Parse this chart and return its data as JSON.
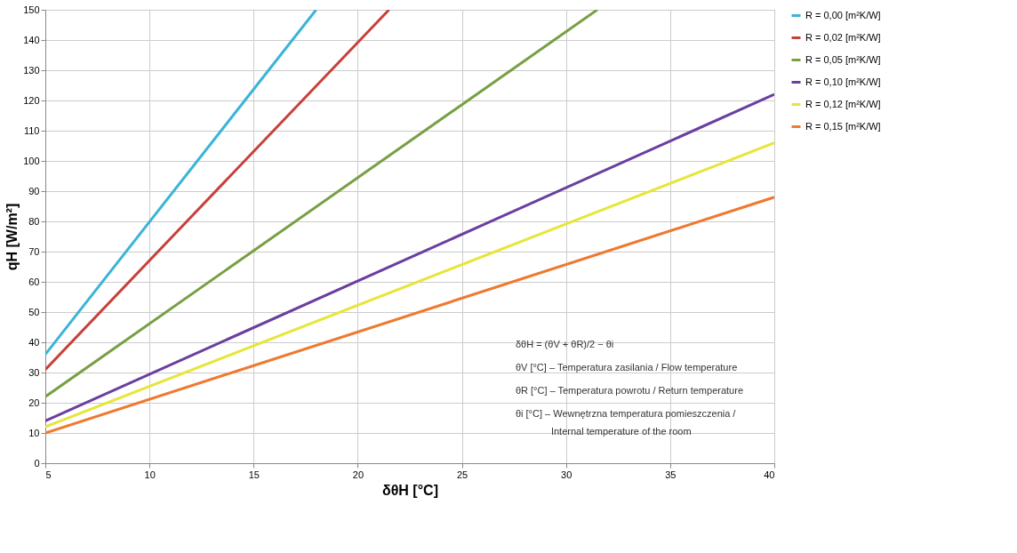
{
  "chart_data": {
    "type": "line",
    "xlabel": "δθH [°C]",
    "ylabel": "qH [W/m²]",
    "series": [
      {
        "name": "R = 0,00   [m²K/W]",
        "color": "#3bb4d8",
        "x": [
          5,
          18
        ],
        "values": [
          36,
          150
        ]
      },
      {
        "name": "R = 0,02   [m²K/W]",
        "color": "#c8403a",
        "x": [
          5,
          21.5
        ],
        "values": [
          31,
          150
        ]
      },
      {
        "name": "R = 0,05   [m²K/W]",
        "color": "#77a043",
        "x": [
          5,
          31.5
        ],
        "values": [
          22,
          150
        ]
      },
      {
        "name": "R = 0,10   [m²K/W]",
        "color": "#6a3fa0",
        "x": [
          5,
          40
        ],
        "values": [
          14,
          122
        ]
      },
      {
        "name": "R = 0,12   [m²K/W]",
        "color": "#e6e63a",
        "x": [
          5,
          40
        ],
        "values": [
          12,
          106
        ]
      },
      {
        "name": "R = 0,15   [m²K/W]",
        "color": "#ee7a30",
        "x": [
          5,
          40
        ],
        "values": [
          10,
          88
        ]
      }
    ],
    "xlim": [
      5,
      40
    ],
    "xticks": [
      5,
      10,
      15,
      20,
      25,
      30,
      35,
      40
    ],
    "ylim": [
      0,
      150
    ],
    "yticks": [
      0,
      10,
      20,
      30,
      40,
      50,
      60,
      70,
      80,
      90,
      100,
      110,
      120,
      130,
      140,
      150
    ],
    "grid": true,
    "legend": "right",
    "marker": "none",
    "line_style": "solid",
    "annotations": [
      "δθH = (θV + θR)/2 − θi",
      "θV [°C] – Temperatura zasilania / Flow temperature",
      "θR [°C] – Temperatura powrotu / Return temperature",
      "θi [°C] – Wewnętrzna temperatura pomieszczenia /",
      "Internal temperature of the room"
    ]
  }
}
